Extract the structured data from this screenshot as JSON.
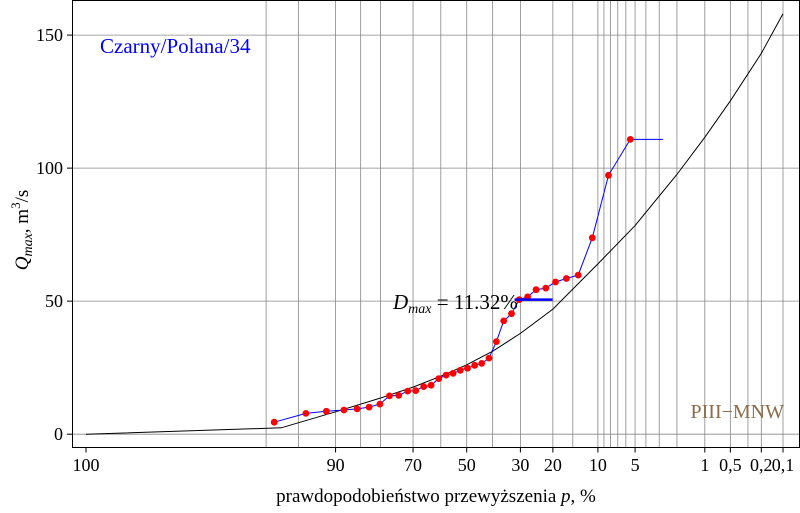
{
  "chart_data": {
    "type": "scatter",
    "title": "Czarny/Polana/34",
    "xlabel": {
      "text": "prawdopodobieństwo przewyższenia",
      "var": "p",
      "unit": ", %"
    },
    "ylabel": {
      "q": "Q",
      "sub": "max",
      "unit": ", m",
      "sup": "3",
      "tail": "/s"
    },
    "x_scale": "normal-probability (reversed)",
    "xlim": [
      100,
      0.1
    ],
    "ylim": [
      -5,
      163
    ],
    "x_ticks": [
      {
        "value": 100,
        "label": "100"
      },
      {
        "value": 90,
        "label": "90"
      },
      {
        "value": 70,
        "label": "70"
      },
      {
        "value": 50,
        "label": "50"
      },
      {
        "value": 30,
        "label": "30"
      },
      {
        "value": 20,
        "label": "20"
      },
      {
        "value": 10,
        "label": "10"
      },
      {
        "value": 5,
        "label": "5"
      },
      {
        "value": 1,
        "label": "1"
      },
      {
        "value": 0.5,
        "label": "0,5"
      },
      {
        "value": 0.2,
        "label": "0,2"
      },
      {
        "value": 0.1,
        "label": "0,1"
      }
    ],
    "x_grid": [
      97.5,
      95,
      90,
      85,
      80,
      70,
      60,
      50,
      40,
      30,
      20,
      15,
      10,
      9,
      8,
      7,
      6,
      5,
      4,
      3,
      2,
      1,
      0.5,
      0.3,
      0.2,
      0.1
    ],
    "y_ticks": [
      0,
      50,
      100,
      150
    ],
    "grid": true,
    "theoretical_curve": {
      "name": "PIII−MNW",
      "color": "#8b6b4a",
      "x": [
        99.99,
        96.5,
        90,
        80,
        70,
        60,
        50,
        40,
        30,
        20,
        10,
        5,
        2,
        1,
        0.5,
        0.2,
        0.1
      ],
      "y": [
        0,
        2.4,
        8.4,
        13.6,
        17.7,
        21.8,
        26.1,
        31.2,
        37.9,
        47,
        64,
        78.4,
        97.6,
        111.6,
        125.3,
        143.1,
        158
      ]
    },
    "empirical_series": {
      "color": "#ff0000",
      "line_color": "#0000ff",
      "x": [
        97,
        94.2,
        91.5,
        88.5,
        85.8,
        83,
        80.2,
        77.5,
        74.7,
        71.8,
        69.1,
        66.3,
        63.6,
        60.8,
        58,
        55.3,
        52.5,
        49.7,
        46.9,
        44.2,
        41.4,
        38.6,
        35.9,
        33.1,
        30.4,
        27.6,
        24.9,
        22,
        19.3,
        16.5,
        13.8,
        11,
        8.3,
        5.5,
        2.75
      ],
      "y": [
        4.5,
        7.8,
        8.6,
        9.1,
        9.5,
        10.2,
        11.3,
        14.4,
        14.6,
        16.2,
        16.4,
        17.9,
        18.4,
        20.9,
        22.2,
        22.9,
        24,
        24.8,
        25.9,
        26.6,
        28.6,
        34.8,
        42.6,
        45.3,
        50.6,
        51.6,
        54.3,
        54.9,
        57.2,
        58.5,
        59.8,
        73.8,
        97.3,
        110.8,
        110.8
      ]
    },
    "dmax": {
      "label_d": "D",
      "label_sub": "max",
      "value_text": " = 11.32%",
      "color": "#0000ff",
      "y": 50.6,
      "x_from": 32,
      "x_to": 20.1
    }
  }
}
